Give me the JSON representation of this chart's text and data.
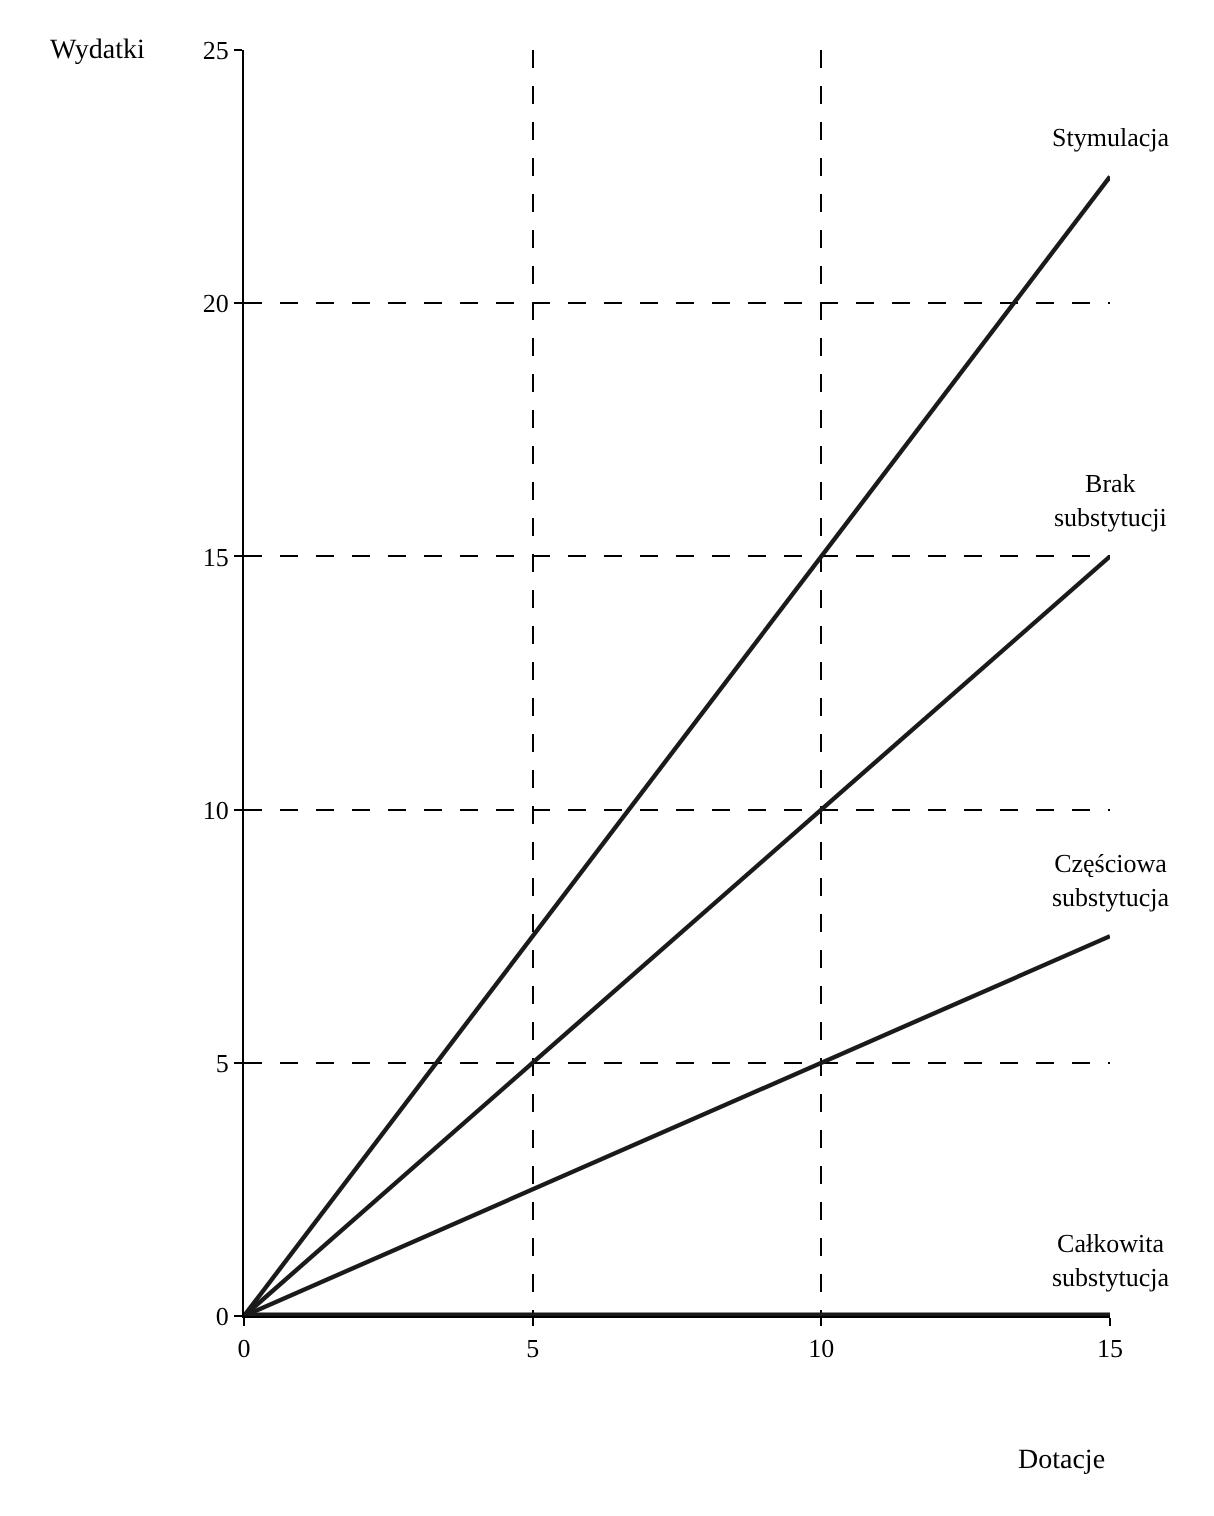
{
  "chart_data": {
    "type": "line",
    "xlabel": "Dotacje",
    "ylabel": "Wydatki",
    "x": [
      0,
      15
    ],
    "series": [
      {
        "name": "Stymulacja",
        "color": "#1a1a1a",
        "values": [
          0,
          22.5
        ]
      },
      {
        "name": "Brak substytucji",
        "color": "#1a1a1a",
        "values": [
          0,
          15
        ]
      },
      {
        "name": "Częściowa substytucja",
        "color": "#1a1a1a",
        "values": [
          0,
          7.5
        ]
      },
      {
        "name": "Całkowita substytucja",
        "color": "#1a1a1a",
        "values": [
          0,
          0
        ]
      }
    ],
    "xlim": [
      0,
      15
    ],
    "ylim": [
      0,
      25
    ],
    "xticks": [
      0,
      5,
      10,
      15
    ],
    "yticks": [
      0,
      5,
      10,
      15,
      20,
      25
    ],
    "grid": true,
    "legend": false,
    "marker": "none",
    "line_style": "solid"
  }
}
